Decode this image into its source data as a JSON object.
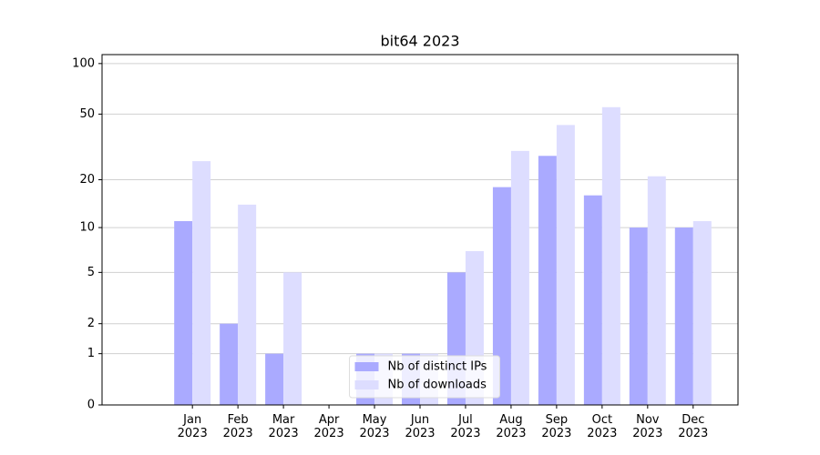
{
  "chart_data": {
    "type": "bar",
    "title": "bit64 2023",
    "categories": [
      [
        "Jan",
        "2023"
      ],
      [
        "Feb",
        "2023"
      ],
      [
        "Mar",
        "2023"
      ],
      [
        "Apr",
        "2023"
      ],
      [
        "May",
        "2023"
      ],
      [
        "Jun",
        "2023"
      ],
      [
        "Jul",
        "2023"
      ],
      [
        "Aug",
        "2023"
      ],
      [
        "Sep",
        "2023"
      ],
      [
        "Oct",
        "2023"
      ],
      [
        "Nov",
        "2023"
      ],
      [
        "Dec",
        "2023"
      ]
    ],
    "series": [
      {
        "name": "Nb of distinct IPs",
        "color": "#aaaaff",
        "values": [
          11,
          2,
          1,
          0,
          1,
          1,
          5,
          18,
          28,
          16,
          10,
          10
        ]
      },
      {
        "name": "Nb of downloads",
        "color": "#ddddff",
        "values": [
          26,
          14,
          5,
          0,
          1,
          1,
          7,
          30,
          43,
          55,
          21,
          11
        ]
      }
    ],
    "yscale": "log1p",
    "ylim": [
      0,
      113
    ],
    "yticks": [
      0,
      1,
      2,
      5,
      10,
      20,
      50,
      100
    ],
    "grid": true,
    "legend": "lower center"
  }
}
